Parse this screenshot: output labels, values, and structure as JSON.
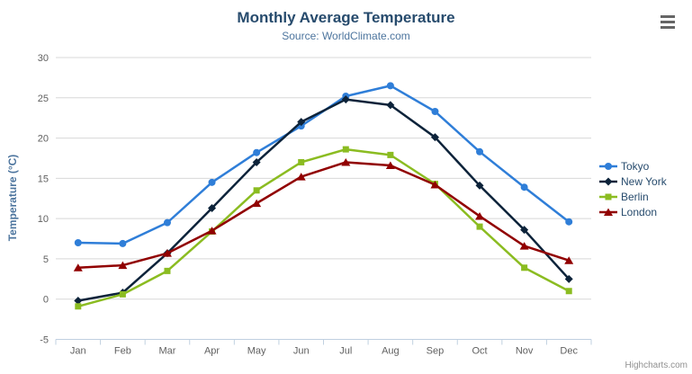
{
  "chart_data": {
    "type": "line",
    "title": "Monthly Average Temperature",
    "subtitle": "Source: WorldClimate.com",
    "xlabel": "",
    "ylabel": "Temperature (°C)",
    "ylim": [
      -5,
      30
    ],
    "yticks": [
      -5,
      0,
      5,
      10,
      15,
      20,
      25,
      30
    ],
    "grid": true,
    "legend_position": "right",
    "categories": [
      "Jan",
      "Feb",
      "Mar",
      "Apr",
      "May",
      "Jun",
      "Jul",
      "Aug",
      "Sep",
      "Oct",
      "Nov",
      "Dec"
    ],
    "series": [
      {
        "name": "Tokyo",
        "color": "#2f7ed8",
        "marker": "circle",
        "values": [
          7.0,
          6.9,
          9.5,
          14.5,
          18.2,
          21.5,
          25.2,
          26.5,
          23.3,
          18.3,
          13.9,
          9.6
        ]
      },
      {
        "name": "New York",
        "color": "#0d233a",
        "marker": "diamond",
        "values": [
          -0.2,
          0.8,
          5.7,
          11.3,
          17.0,
          22.0,
          24.8,
          24.1,
          20.1,
          14.1,
          8.6,
          2.5
        ]
      },
      {
        "name": "Berlin",
        "color": "#8bbc21",
        "marker": "square",
        "values": [
          -0.9,
          0.6,
          3.5,
          8.4,
          13.5,
          17.0,
          18.6,
          17.9,
          14.3,
          9.0,
          3.9,
          1.0
        ]
      },
      {
        "name": "London",
        "color": "#910000",
        "marker": "triangle",
        "values": [
          3.9,
          4.2,
          5.7,
          8.5,
          11.9,
          15.2,
          17.0,
          16.6,
          14.2,
          10.3,
          6.6,
          4.8
        ]
      }
    ]
  },
  "credits": {
    "label": "Highcharts.com"
  },
  "context_menu": {
    "icon": "hamburger"
  },
  "theme": {
    "background": "#ffffff",
    "title_color": "#274b6d",
    "subtitle_color": "#4d759e",
    "axis_title_color": "#4d759e",
    "tick_label_color": "#606060",
    "grid_color": "#d8d8d8",
    "axis_line_color": "#c0d0e0",
    "legend_text_color": "#274b6d",
    "credits_color": "#909090",
    "hamburger_color": "#666666"
  }
}
